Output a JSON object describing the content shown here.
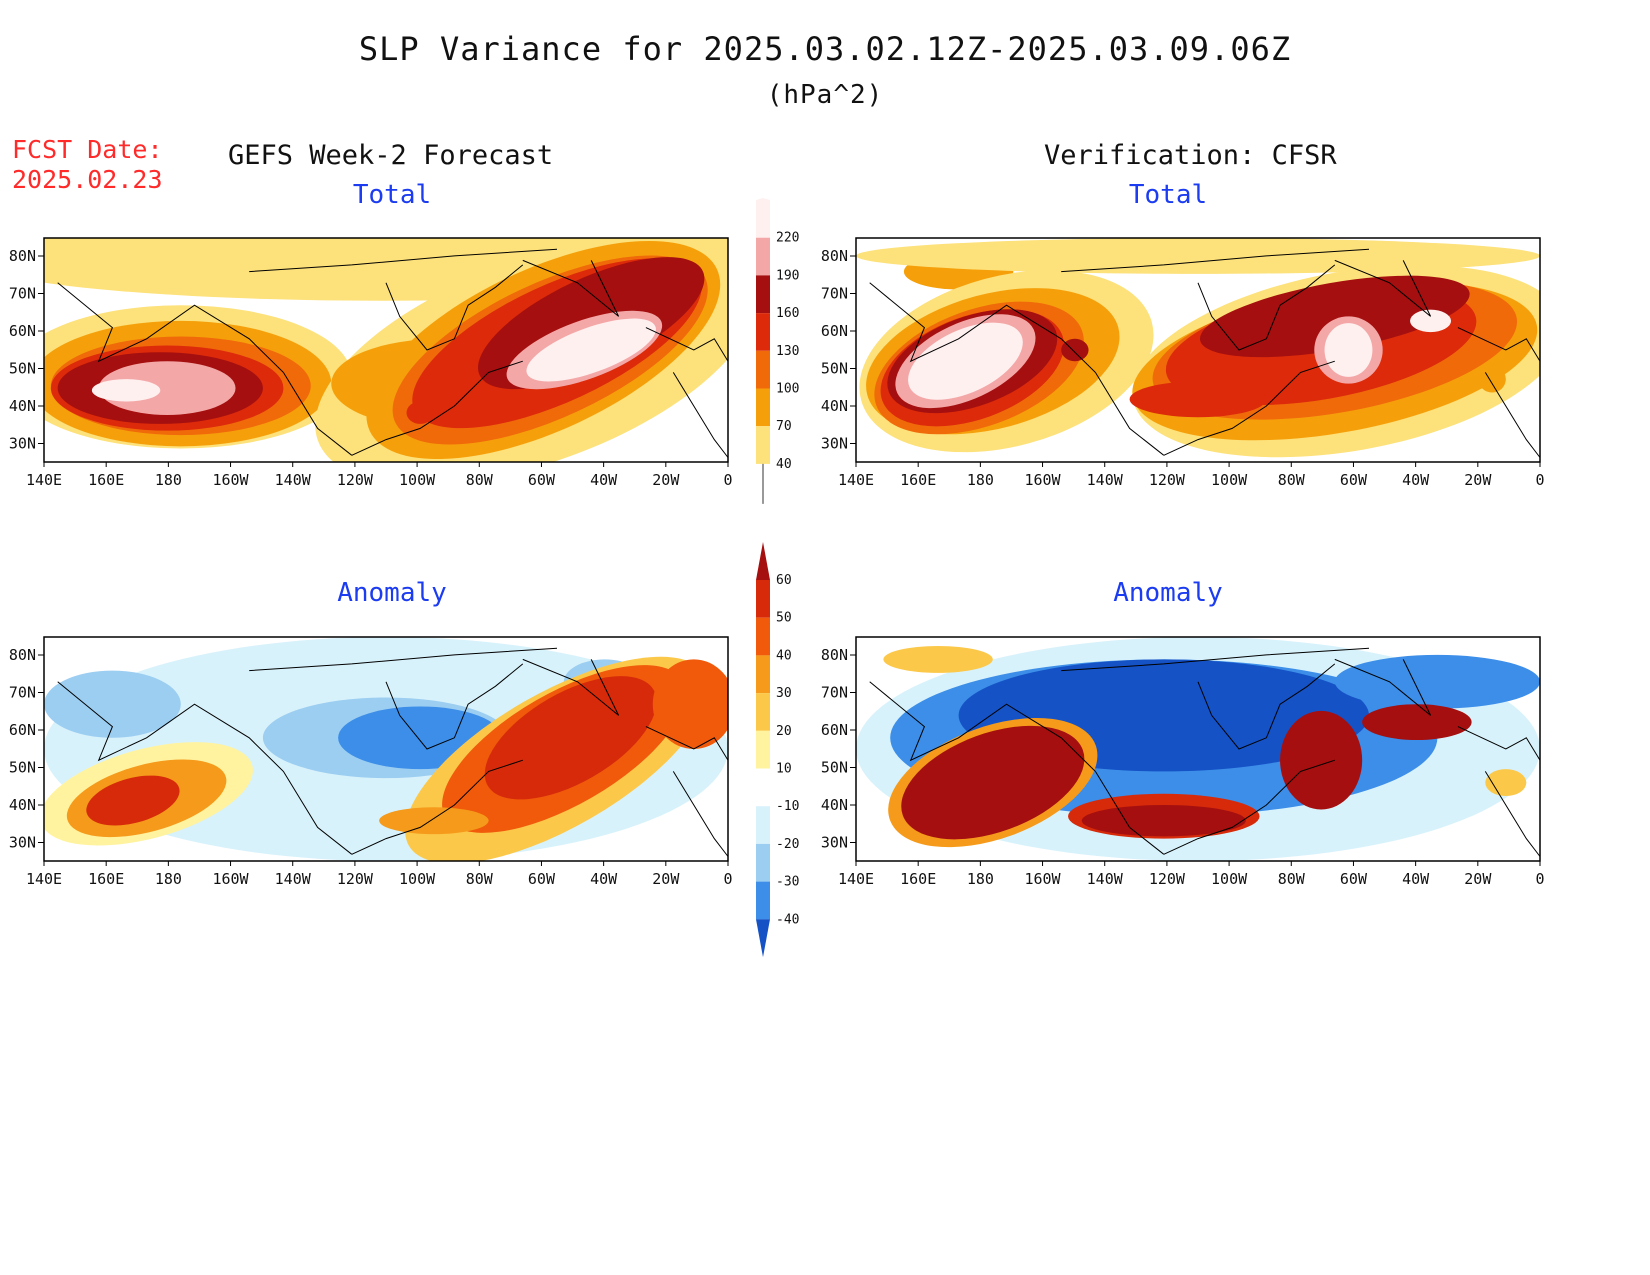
{
  "header": {
    "title": "SLP Variance for 2025.03.02.12Z-2025.03.09.06Z",
    "units": "(hPa^2)",
    "fcst_date_label": "FCST Date:",
    "fcst_date": "2025.02.23"
  },
  "columns": {
    "left": "GEFS Week-2 Forecast",
    "right": "Verification: CFSR"
  },
  "panels": {
    "total_title": "Total",
    "anomaly_title": "Anomaly"
  },
  "axes": {
    "lat_labels": [
      "80N",
      "70N",
      "60N",
      "50N",
      "40N",
      "30N"
    ],
    "lon_labels": [
      "140E",
      "160E",
      "180",
      "160W",
      "140W",
      "120W",
      "100W",
      "80W",
      "60W",
      "40W",
      "20W",
      "0"
    ]
  },
  "colorbars": {
    "total": {
      "levels": [
        "220",
        "190",
        "160",
        "130",
        "100",
        "70",
        "40"
      ],
      "colors": [
        "#fff0f0",
        "#f4a7a7",
        "#a50f0f",
        "#dc2a0a",
        "#f06a0a",
        "#f5a00a",
        "#fde17a"
      ]
    },
    "anomaly": {
      "levels": [
        "60",
        "50",
        "40",
        "30",
        "20",
        "10",
        "-10",
        "-20",
        "-30",
        "-40"
      ],
      "colors": [
        "#a50f0f",
        "#d62a0a",
        "#f05a0a",
        "#f59a1a",
        "#fbc84a",
        "#fff3a0",
        "#ffffff",
        "#d8f2fb",
        "#9ccef2",
        "#3c8ee8",
        "#1552c6"
      ]
    }
  }
}
